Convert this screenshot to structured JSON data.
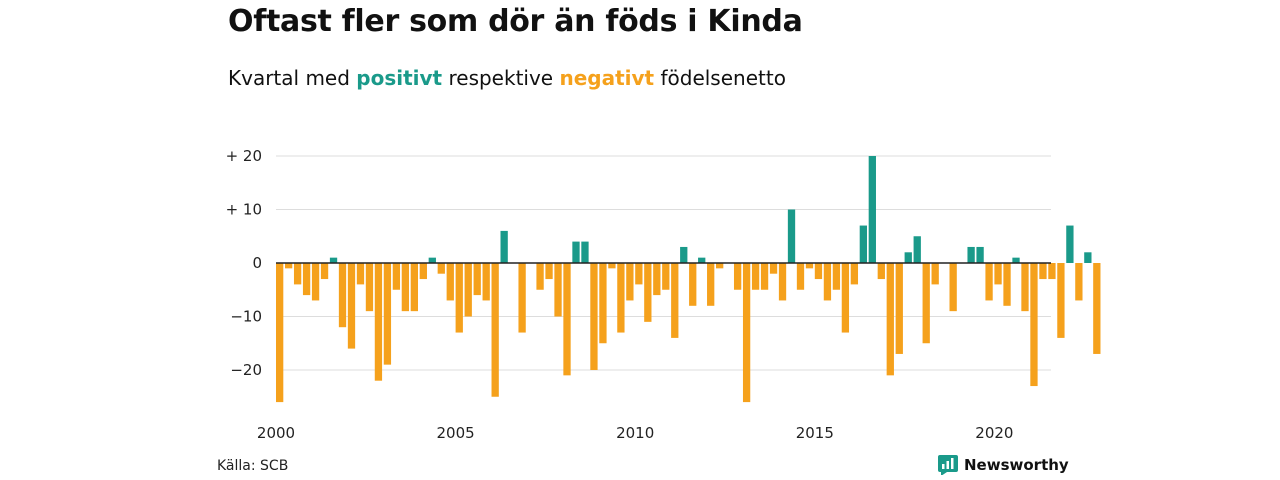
{
  "header": {
    "title": "Oftast fler som dör än föds i Kinda",
    "subtitle_pre": "Kvartal med ",
    "subtitle_pos": "positivt",
    "subtitle_mid": " respektive ",
    "subtitle_neg": "negativt",
    "subtitle_post": " födelsenetto"
  },
  "footer": {
    "source": "Källa: SCB",
    "brand": "Newsworthy"
  },
  "colors": {
    "positive": "#1a9a8a",
    "negative": "#f5a11c",
    "grid": "#dddddd",
    "axis": "#222222"
  },
  "chart_data": {
    "type": "bar",
    "x_start": "2000-Q1",
    "frequency": "quarterly",
    "ylim": [
      -27,
      21
    ],
    "y_ticks": [
      {
        "value": 20,
        "label": "+ 20"
      },
      {
        "value": 10,
        "label": "+ 10"
      },
      {
        "value": 0,
        "label": "0"
      },
      {
        "value": -10,
        "label": "−10"
      },
      {
        "value": -20,
        "label": "−20"
      }
    ],
    "x_ticks": [
      "2000",
      "2005",
      "2010",
      "2015",
      "2020"
    ],
    "grid": true,
    "values": [
      -26,
      -1,
      -4,
      -6,
      -7,
      -3,
      1,
      -12,
      -16,
      -4,
      -9,
      -22,
      -19,
      -5,
      -9,
      -9,
      -3,
      1,
      -2,
      -7,
      -13,
      -10,
      -6,
      -7,
      -25,
      6,
      0,
      -13,
      0,
      -5,
      -3,
      -10,
      -21,
      4,
      4,
      -20,
      -15,
      -1,
      -13,
      -7,
      -4,
      -11,
      -6,
      -5,
      -14,
      3,
      -8,
      1,
      -8,
      -1,
      0,
      -5,
      -26,
      -5,
      -5,
      -2,
      -7,
      10,
      -5,
      -1,
      -3,
      -7,
      -5,
      -13,
      -4,
      7,
      20,
      -3,
      -21,
      -17,
      2,
      5,
      -15,
      -4,
      0,
      -9,
      0,
      3,
      3,
      -7,
      -4,
      -8,
      1,
      -9,
      -23,
      -3,
      -3,
      -14,
      7,
      -7,
      2,
      -17
    ]
  }
}
